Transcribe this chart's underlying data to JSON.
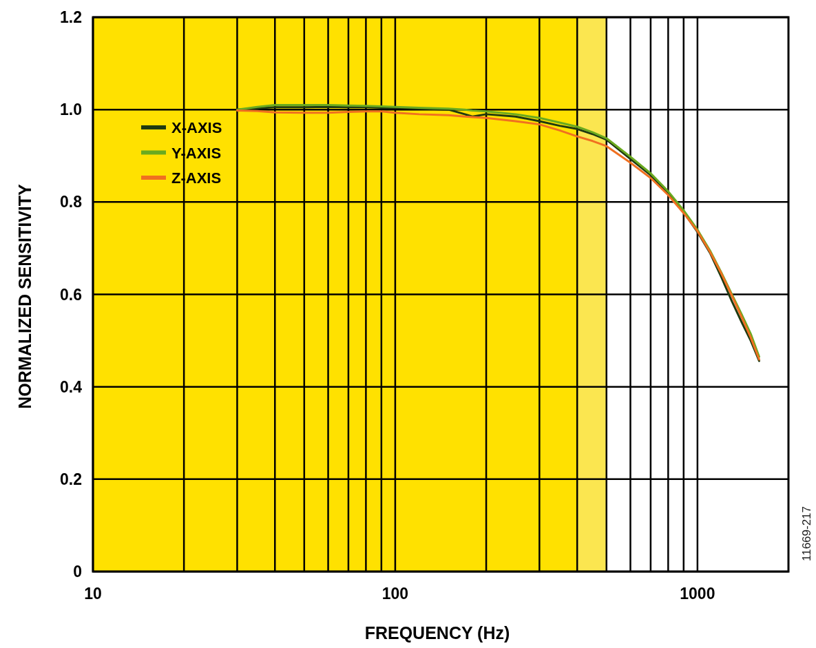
{
  "chart_data": {
    "type": "line",
    "xlabel": "FREQUENCY (Hz)",
    "ylabel": "NORMALIZED SENSITIVITY",
    "log": "x",
    "x": [
      30,
      35,
      40,
      50,
      60,
      70,
      80,
      90,
      100,
      120,
      150,
      170,
      180,
      200,
      250,
      300,
      350,
      400,
      450,
      500,
      600,
      700,
      800,
      900,
      1000,
      1100,
      1200,
      1300,
      1400,
      1500,
      1600
    ],
    "series": [
      {
        "name": "X-AXIS",
        "color": "#1f3a10",
        "values": [
          1.0,
          1.003,
          1.005,
          1.005,
          1.006,
          1.005,
          1.005,
          1.004,
          1.004,
          1.002,
          1.0,
          0.99,
          0.985,
          0.99,
          0.985,
          0.975,
          0.965,
          0.958,
          0.947,
          0.935,
          0.893,
          0.858,
          0.82,
          0.778,
          0.735,
          0.69,
          0.637,
          0.585,
          0.54,
          0.5,
          0.456
        ]
      },
      {
        "name": "Y-AXIS",
        "color": "#6aaa1f",
        "values": [
          1.0,
          1.006,
          1.01,
          1.01,
          1.01,
          1.009,
          1.008,
          1.007,
          1.006,
          1.004,
          1.002,
          1.0,
          0.998,
          0.996,
          0.99,
          0.982,
          0.972,
          0.963,
          0.951,
          0.938,
          0.898,
          0.862,
          0.823,
          0.782,
          0.74,
          0.695,
          0.647,
          0.6,
          0.557,
          0.515,
          0.465
        ]
      },
      {
        "name": "Z-AXIS",
        "color": "#f07020",
        "values": [
          0.998,
          0.997,
          0.994,
          0.993,
          0.993,
          0.995,
          0.996,
          0.996,
          0.993,
          0.99,
          0.988,
          0.985,
          0.984,
          0.982,
          0.975,
          0.968,
          0.955,
          0.942,
          0.932,
          0.921,
          0.885,
          0.852,
          0.815,
          0.776,
          0.737,
          0.692,
          0.645,
          0.597,
          0.551,
          0.507,
          0.459
        ]
      }
    ],
    "xlim": [
      10,
      2000
    ],
    "xticks": [
      10,
      {
        "value": 20,
        "label": null
      },
      {
        "value": 30,
        "label": null
      },
      {
        "value": 40,
        "label": null
      },
      {
        "value": 50,
        "label": null
      },
      {
        "value": 60,
        "label": null
      },
      {
        "value": 70,
        "label": null
      },
      {
        "value": 80,
        "label": null
      },
      {
        "value": 90,
        "label": null
      },
      100,
      {
        "value": 200,
        "label": null
      },
      {
        "value": 300,
        "label": null
      },
      {
        "value": 400,
        "label": null
      },
      {
        "value": 500,
        "label": null
      },
      {
        "value": 600,
        "label": null
      },
      {
        "value": 700,
        "label": null
      },
      {
        "value": 800,
        "label": null
      },
      {
        "value": 900,
        "label": null
      },
      1000
    ],
    "ylim": [
      0,
      1.2
    ],
    "yticks": [
      {
        "value": 0,
        "label": "0"
      },
      {
        "value": 0.2,
        "label": "0.2"
      },
      {
        "value": 0.4,
        "label": "0.4"
      },
      {
        "value": 0.6,
        "label": "0.6"
      },
      {
        "value": 0.8,
        "label": "0.8"
      },
      {
        "value": 1.0,
        "label": "1.0"
      },
      {
        "value": 1.2,
        "label": "1.2"
      }
    ],
    "grid": true,
    "legend": "top left",
    "marker": "none",
    "line_style": "solid",
    "bands": [
      {
        "axis": "x",
        "from": 10,
        "to": 400,
        "color": "#ffe100"
      },
      {
        "axis": "x",
        "from": 400,
        "to": 500,
        "color": "#fbe650"
      }
    ],
    "annotations": [
      "11669-217"
    ]
  }
}
